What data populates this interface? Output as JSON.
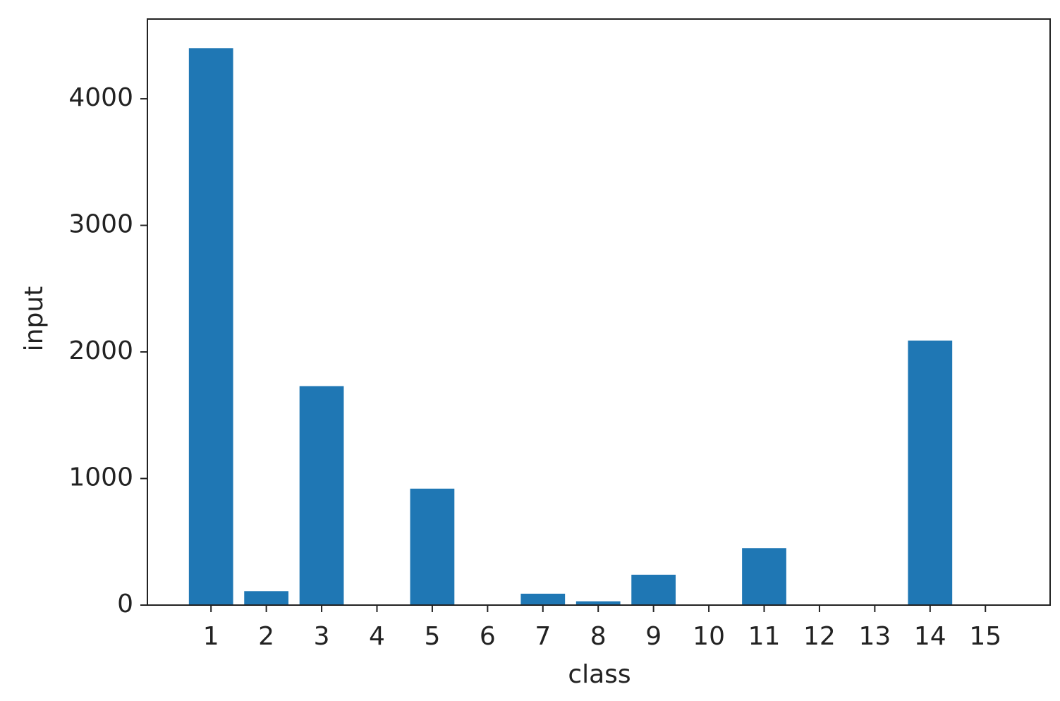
{
  "chart_data": {
    "type": "bar",
    "x_label": "class",
    "y_label": "input",
    "x": [
      1,
      2,
      3,
      4,
      5,
      6,
      7,
      8,
      9,
      10,
      11,
      12,
      13,
      14,
      15
    ],
    "values": [
      4400,
      110,
      1730,
      0,
      920,
      0,
      90,
      30,
      240,
      0,
      450,
      0,
      0,
      2090,
      0
    ],
    "color": "#1f77b4",
    "xlim": [
      -0.15,
      16.17
    ],
    "xticks": [
      1,
      2,
      3,
      4,
      5,
      6,
      7,
      8,
      9,
      10,
      11,
      12,
      13,
      14,
      15
    ],
    "ylim": [
      0,
      4630
    ],
    "yticks": [
      0,
      1000,
      2000,
      3000,
      4000
    ]
  }
}
